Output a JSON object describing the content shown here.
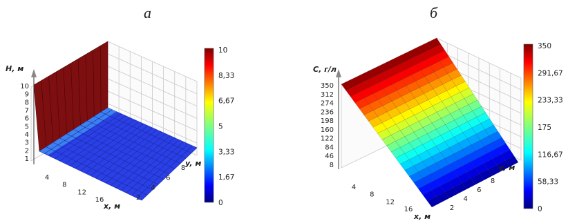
{
  "chart_data": [
    {
      "panel_label": "а",
      "type": "surface3d",
      "zlabel": "H, м",
      "xlabel": "x, м",
      "ylabel": "y, м",
      "x_ticks": [
        "4",
        "8",
        "12",
        "16"
      ],
      "y_ticks": [
        "2",
        "4",
        "6",
        "8"
      ],
      "z_ticks": [
        "1",
        "2",
        "3",
        "4",
        "5",
        "6",
        "7",
        "8",
        "9",
        "10"
      ],
      "xlim": [
        0,
        20
      ],
      "ylim": [
        0,
        10
      ],
      "zlim": [
        1,
        10
      ],
      "surface": {
        "description_values": {
          "wall_x": 0,
          "wall_H": 10,
          "floor_H": 1
        }
      },
      "colorbar": {
        "ticks": [
          "10",
          "8,33",
          "6,67",
          "5",
          "3,33",
          "1,67",
          "0"
        ],
        "range": [
          0,
          10
        ]
      },
      "colormap": "jet"
    },
    {
      "panel_label": "б",
      "type": "surface3d",
      "zlabel": "C, г/л",
      "xlabel": "x, м",
      "ylabel": "y, м",
      "x_ticks": [
        "4",
        "8",
        "12",
        "16"
      ],
      "y_ticks": [
        "2",
        "4",
        "6",
        "8"
      ],
      "z_ticks": [
        "350",
        "312",
        "274",
        "236",
        "198",
        "160",
        "122",
        "84",
        "46",
        "8"
      ],
      "xlim": [
        0,
        20
      ],
      "ylim": [
        0,
        10
      ],
      "zlim": [
        8,
        350
      ],
      "surface": {
        "description_values": {
          "C_at_x0": 350,
          "C_at_x20": 8
        }
      },
      "colorbar": {
        "ticks": [
          "350",
          "291,67",
          "233,33",
          "175",
          "116,67",
          "58,33",
          "0"
        ],
        "range": [
          0,
          350
        ]
      },
      "colormap": "jet"
    }
  ]
}
